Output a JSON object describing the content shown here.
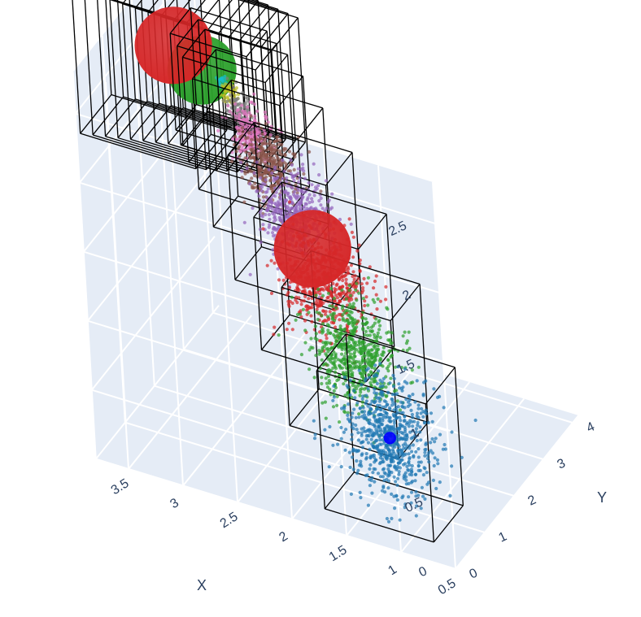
{
  "chart_data": {
    "type": "scatter3d",
    "xlabel": "X",
    "ylabel": "Y",
    "zlabel": "",
    "x_ticks": [
      "3.5",
      "3",
      "2.5",
      "2",
      "1.5",
      "1",
      "0.5"
    ],
    "y_ticks": [
      "0",
      "1",
      "2",
      "3",
      "4"
    ],
    "z_ticks": [
      "0",
      "0.5",
      "1",
      "1.5",
      "2",
      "2.5"
    ],
    "xlim": [
      0.5,
      3.8
    ],
    "ylim": [
      0,
      4.2
    ],
    "zlim": [
      0,
      2.8
    ],
    "grid": true,
    "legend": "none",
    "scene_background": "#e5ecf6",
    "gridline_color": "#ffffff",
    "box_outline_color": "#000000",
    "clusters": [
      {
        "color": "#1f77b4",
        "center": [
          1.1,
          0.2,
          0.75
        ],
        "size": 0.45,
        "points": 700,
        "box_half": 0.5
      },
      {
        "color": "#2ca02c",
        "center": [
          1.5,
          0.6,
          1.15
        ],
        "size": 0.42,
        "points": 650,
        "box_half": 0.5
      },
      {
        "color": "#d62728",
        "center": [
          1.85,
          0.95,
          1.5
        ],
        "size": 0.4,
        "points": 600,
        "box_half": 0.48
      },
      {
        "color": "#9467bd",
        "center": [
          2.2,
          1.3,
          1.8
        ],
        "size": 0.35,
        "points": 500,
        "box_half": 0.45
      },
      {
        "color": "#8c564b",
        "center": [
          2.5,
          1.6,
          2.0
        ],
        "size": 0.28,
        "points": 350,
        "box_half": 0.42
      },
      {
        "color": "#e377c2",
        "center": [
          2.7,
          1.8,
          2.15
        ],
        "size": 0.2,
        "points": 200,
        "box_half": 0.4
      },
      {
        "color": "#7f7f7f",
        "center": [
          2.85,
          1.95,
          2.25
        ],
        "size": 0.14,
        "points": 100,
        "box_half": 0.38
      },
      {
        "color": "#bcbd22",
        "center": [
          2.95,
          2.05,
          2.3
        ],
        "size": 0.09,
        "points": 50,
        "box_half": 0.36
      },
      {
        "color": "#17becf",
        "center": [
          3.05,
          2.15,
          2.35
        ],
        "size": 0.05,
        "points": 20,
        "box_half": 0.35
      }
    ],
    "spheres": [
      {
        "color": "#0000ff",
        "center": [
          1.1,
          0.2,
          0.75
        ],
        "radius": 0.045
      },
      {
        "color": "#d62728",
        "center": [
          2.35,
          2.35,
          1.25
        ],
        "radius": 0.28
      },
      {
        "color": "#2ca02c",
        "center": [
          3.3,
          2.4,
          2.3
        ],
        "radius": 0.25
      },
      {
        "color": "#d62728",
        "center": [
          3.7,
          2.9,
          2.25
        ],
        "radius": 0.28
      }
    ],
    "back_boxes": {
      "count": 9,
      "x_start": 3.0,
      "x_end": 3.8,
      "half": 0.45
    }
  }
}
